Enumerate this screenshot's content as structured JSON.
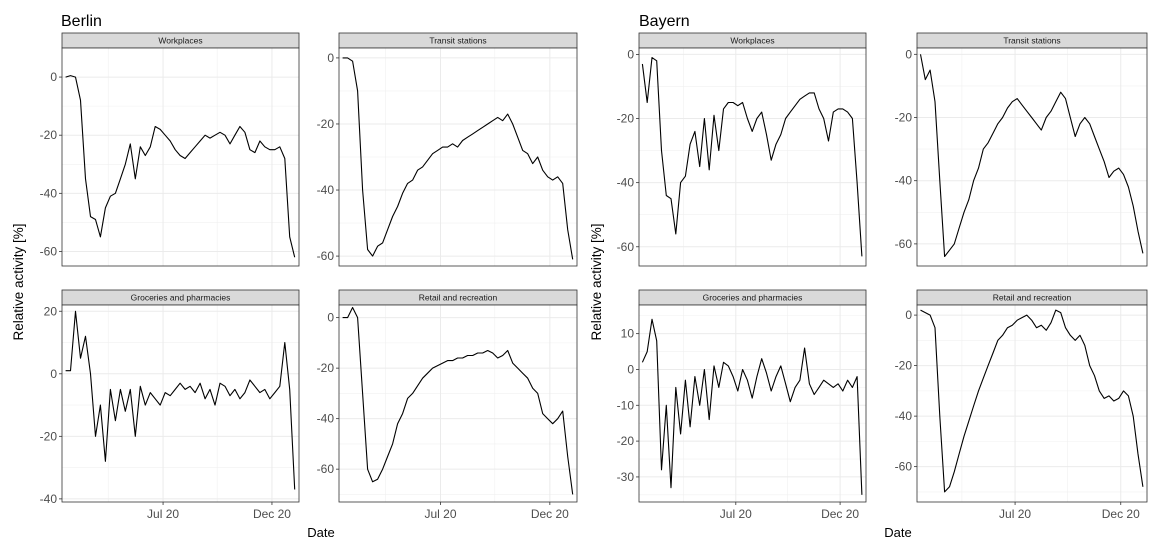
{
  "chart_data": [
    {
      "type": "line",
      "title": "Berlin",
      "xlabel": "Date",
      "ylabel": "Relative activity [%]",
      "x_ticks": [
        "Jul 20",
        "Dec 20"
      ],
      "grid": true,
      "panels": [
        {
          "name": "Workplaces",
          "ylim": [
            -65,
            10
          ],
          "yticks": [
            0,
            -20,
            -40,
            -60
          ],
          "x": [
            "2020-02-15",
            "2020-02-22",
            "2020-02-29",
            "2020-03-07",
            "2020-03-14",
            "2020-03-21",
            "2020-03-28",
            "2020-04-04",
            "2020-04-11",
            "2020-04-18",
            "2020-04-25",
            "2020-05-02",
            "2020-05-09",
            "2020-05-16",
            "2020-05-23",
            "2020-05-30",
            "2020-06-06",
            "2020-06-13",
            "2020-06-20",
            "2020-06-27",
            "2020-07-04",
            "2020-07-11",
            "2020-07-18",
            "2020-07-25",
            "2020-08-01",
            "2020-08-08",
            "2020-08-15",
            "2020-08-22",
            "2020-08-29",
            "2020-09-05",
            "2020-09-12",
            "2020-09-19",
            "2020-09-26",
            "2020-10-03",
            "2020-10-10",
            "2020-10-17",
            "2020-10-24",
            "2020-10-31",
            "2020-11-07",
            "2020-11-14",
            "2020-11-21",
            "2020-11-28",
            "2020-12-05",
            "2020-12-12",
            "2020-12-19",
            "2020-12-26",
            "2021-01-02"
          ],
          "y": [
            0,
            0.5,
            0,
            -8,
            -35,
            -48,
            -49,
            -55,
            -45,
            -41,
            -40,
            -35,
            -30,
            -23,
            -35,
            -24,
            -27,
            -24,
            -17,
            -18,
            -20,
            -22,
            -25,
            -27,
            -28,
            -26,
            -24,
            -22,
            -20,
            -21,
            -20,
            -19,
            -20,
            -23,
            -20,
            -17,
            -19,
            -25,
            -26,
            -22,
            -24,
            -25,
            -25,
            -24,
            -28,
            -55,
            -62
          ]
        },
        {
          "name": "Transit stations",
          "ylim": [
            -63,
            3
          ],
          "yticks": [
            0,
            -20,
            -40,
            -60
          ],
          "x": [
            "2020-02-15",
            "2020-02-22",
            "2020-02-29",
            "2020-03-07",
            "2020-03-14",
            "2020-03-21",
            "2020-03-28",
            "2020-04-04",
            "2020-04-11",
            "2020-04-18",
            "2020-04-25",
            "2020-05-02",
            "2020-05-09",
            "2020-05-16",
            "2020-05-23",
            "2020-05-30",
            "2020-06-06",
            "2020-06-13",
            "2020-06-20",
            "2020-06-27",
            "2020-07-04",
            "2020-07-11",
            "2020-07-18",
            "2020-07-25",
            "2020-08-01",
            "2020-08-08",
            "2020-08-15",
            "2020-08-22",
            "2020-08-29",
            "2020-09-05",
            "2020-09-12",
            "2020-09-19",
            "2020-09-26",
            "2020-10-03",
            "2020-10-10",
            "2020-10-17",
            "2020-10-24",
            "2020-10-31",
            "2020-11-07",
            "2020-11-14",
            "2020-11-21",
            "2020-11-28",
            "2020-12-05",
            "2020-12-12",
            "2020-12-19",
            "2020-12-26",
            "2021-01-02"
          ],
          "y": [
            0,
            0,
            -1,
            -10,
            -40,
            -58,
            -60,
            -57,
            -56,
            -52,
            -48,
            -45,
            -41,
            -38,
            -37,
            -34,
            -33,
            -31,
            -29,
            -28,
            -27,
            -27,
            -26,
            -27,
            -25,
            -24,
            -23,
            -22,
            -21,
            -20,
            -19,
            -18,
            -19,
            -17,
            -20,
            -24,
            -28,
            -29,
            -32,
            -30,
            -34,
            -36,
            -37,
            -36,
            -38,
            -52,
            -61
          ]
        },
        {
          "name": "Groceries and pharmacies",
          "ylim": [
            -41,
            22
          ],
          "yticks": [
            20,
            0,
            -20,
            -40
          ],
          "x": [
            "2020-02-15",
            "2020-02-22",
            "2020-02-29",
            "2020-03-07",
            "2020-03-14",
            "2020-03-21",
            "2020-03-28",
            "2020-04-04",
            "2020-04-11",
            "2020-04-18",
            "2020-04-25",
            "2020-05-02",
            "2020-05-09",
            "2020-05-16",
            "2020-05-23",
            "2020-05-30",
            "2020-06-06",
            "2020-06-13",
            "2020-06-20",
            "2020-06-27",
            "2020-07-04",
            "2020-07-11",
            "2020-07-18",
            "2020-07-25",
            "2020-08-01",
            "2020-08-08",
            "2020-08-15",
            "2020-08-22",
            "2020-08-29",
            "2020-09-05",
            "2020-09-12",
            "2020-09-19",
            "2020-09-26",
            "2020-10-03",
            "2020-10-10",
            "2020-10-17",
            "2020-10-24",
            "2020-10-31",
            "2020-11-07",
            "2020-11-14",
            "2020-11-21",
            "2020-11-28",
            "2020-12-05",
            "2020-12-12",
            "2020-12-19",
            "2020-12-26",
            "2021-01-02"
          ],
          "y": [
            1,
            1,
            20,
            5,
            12,
            0,
            -20,
            -10,
            -28,
            -5,
            -15,
            -5,
            -12,
            -5,
            -20,
            -4,
            -10,
            -6,
            -8,
            -10,
            -6,
            -7,
            -5,
            -3,
            -5,
            -4,
            -6,
            -3,
            -8,
            -5,
            -10,
            -3,
            -4,
            -7,
            -5,
            -8,
            -6,
            -2,
            -4,
            -6,
            -5,
            -8,
            -6,
            -4,
            10,
            -5,
            -37
          ]
        },
        {
          "name": "Retail and recreation",
          "ylim": [
            -73,
            5
          ],
          "yticks": [
            0,
            -20,
            -40,
            -60
          ],
          "x": [
            "2020-02-15",
            "2020-02-22",
            "2020-02-29",
            "2020-03-07",
            "2020-03-14",
            "2020-03-21",
            "2020-03-28",
            "2020-04-04",
            "2020-04-11",
            "2020-04-18",
            "2020-04-25",
            "2020-05-02",
            "2020-05-09",
            "2020-05-16",
            "2020-05-23",
            "2020-05-30",
            "2020-06-06",
            "2020-06-13",
            "2020-06-20",
            "2020-06-27",
            "2020-07-04",
            "2020-07-11",
            "2020-07-18",
            "2020-07-25",
            "2020-08-01",
            "2020-08-08",
            "2020-08-15",
            "2020-08-22",
            "2020-08-29",
            "2020-09-05",
            "2020-09-12",
            "2020-09-19",
            "2020-09-26",
            "2020-10-03",
            "2020-10-10",
            "2020-10-17",
            "2020-10-24",
            "2020-10-31",
            "2020-11-07",
            "2020-11-14",
            "2020-11-21",
            "2020-11-28",
            "2020-12-05",
            "2020-12-12",
            "2020-12-19",
            "2020-12-26",
            "2021-01-02"
          ],
          "y": [
            0,
            0,
            4,
            0,
            -30,
            -60,
            -65,
            -64,
            -60,
            -55,
            -50,
            -42,
            -38,
            -32,
            -30,
            -27,
            -24,
            -22,
            -20,
            -19,
            -18,
            -17,
            -17,
            -16,
            -16,
            -15,
            -15,
            -14,
            -14,
            -13,
            -14,
            -16,
            -15,
            -13,
            -18,
            -20,
            -22,
            -24,
            -28,
            -30,
            -38,
            -40,
            -42,
            -40,
            -37,
            -55,
            -70
          ]
        }
      ]
    },
    {
      "type": "line",
      "title": "Bayern",
      "xlabel": "Date",
      "ylabel": "Relative activity [%]",
      "x_ticks": [
        "Jul 20",
        "Dec 20"
      ],
      "grid": true,
      "panels": [
        {
          "name": "Workplaces",
          "ylim": [
            -66,
            2
          ],
          "yticks": [
            0,
            -20,
            -40,
            -60
          ],
          "x": [
            "2020-02-15",
            "2020-02-22",
            "2020-02-29",
            "2020-03-07",
            "2020-03-14",
            "2020-03-21",
            "2020-03-28",
            "2020-04-04",
            "2020-04-11",
            "2020-04-18",
            "2020-04-25",
            "2020-05-02",
            "2020-05-09",
            "2020-05-16",
            "2020-05-23",
            "2020-05-30",
            "2020-06-06",
            "2020-06-13",
            "2020-06-20",
            "2020-06-27",
            "2020-07-04",
            "2020-07-11",
            "2020-07-18",
            "2020-07-25",
            "2020-08-01",
            "2020-08-08",
            "2020-08-15",
            "2020-08-22",
            "2020-08-29",
            "2020-09-05",
            "2020-09-12",
            "2020-09-19",
            "2020-09-26",
            "2020-10-03",
            "2020-10-10",
            "2020-10-17",
            "2020-10-24",
            "2020-10-31",
            "2020-11-07",
            "2020-11-14",
            "2020-11-21",
            "2020-11-28",
            "2020-12-05",
            "2020-12-12",
            "2020-12-19",
            "2020-12-26",
            "2021-01-02"
          ],
          "y": [
            -3,
            -15,
            -1,
            -2,
            -30,
            -44,
            -45,
            -56,
            -40,
            -38,
            -28,
            -24,
            -35,
            -20,
            -36,
            -19,
            -30,
            -17,
            -15,
            -15,
            -16,
            -15,
            -20,
            -24,
            -20,
            -18,
            -25,
            -33,
            -28,
            -25,
            -20,
            -18,
            -16,
            -14,
            -13,
            -12,
            -12,
            -17,
            -20,
            -27,
            -18,
            -17,
            -17,
            -18,
            -20,
            -40,
            -63
          ]
        },
        {
          "name": "Transit stations",
          "ylim": [
            -67,
            2
          ],
          "yticks": [
            0,
            -20,
            -40,
            -60
          ],
          "x": [
            "2020-02-15",
            "2020-02-22",
            "2020-02-29",
            "2020-03-07",
            "2020-03-14",
            "2020-03-21",
            "2020-03-28",
            "2020-04-04",
            "2020-04-11",
            "2020-04-18",
            "2020-04-25",
            "2020-05-02",
            "2020-05-09",
            "2020-05-16",
            "2020-05-23",
            "2020-05-30",
            "2020-06-06",
            "2020-06-13",
            "2020-06-20",
            "2020-06-27",
            "2020-07-04",
            "2020-07-11",
            "2020-07-18",
            "2020-07-25",
            "2020-08-01",
            "2020-08-08",
            "2020-08-15",
            "2020-08-22",
            "2020-08-29",
            "2020-09-05",
            "2020-09-12",
            "2020-09-19",
            "2020-09-26",
            "2020-10-03",
            "2020-10-10",
            "2020-10-17",
            "2020-10-24",
            "2020-10-31",
            "2020-11-07",
            "2020-11-14",
            "2020-11-21",
            "2020-11-28",
            "2020-12-05",
            "2020-12-12",
            "2020-12-19",
            "2020-12-26",
            "2021-01-02"
          ],
          "y": [
            0,
            -8,
            -5,
            -15,
            -40,
            -64,
            -62,
            -60,
            -55,
            -50,
            -46,
            -40,
            -36,
            -30,
            -28,
            -25,
            -22,
            -20,
            -17,
            -15,
            -14,
            -16,
            -18,
            -20,
            -22,
            -24,
            -20,
            -18,
            -15,
            -12,
            -14,
            -20,
            -26,
            -22,
            -20,
            -22,
            -26,
            -30,
            -34,
            -39,
            -37,
            -36,
            -38,
            -42,
            -48,
            -56,
            -63
          ]
        },
        {
          "name": "Groceries and pharmacies",
          "ylim": [
            -37,
            18
          ],
          "yticks": [
            10,
            0,
            -10,
            -20,
            -30
          ],
          "x": [
            "2020-02-15",
            "2020-02-22",
            "2020-02-29",
            "2020-03-07",
            "2020-03-14",
            "2020-03-21",
            "2020-03-28",
            "2020-04-04",
            "2020-04-11",
            "2020-04-18",
            "2020-04-25",
            "2020-05-02",
            "2020-05-09",
            "2020-05-16",
            "2020-05-23",
            "2020-05-30",
            "2020-06-06",
            "2020-06-13",
            "2020-06-20",
            "2020-06-27",
            "2020-07-04",
            "2020-07-11",
            "2020-07-18",
            "2020-07-25",
            "2020-08-01",
            "2020-08-08",
            "2020-08-15",
            "2020-08-22",
            "2020-08-29",
            "2020-09-05",
            "2020-09-12",
            "2020-09-19",
            "2020-09-26",
            "2020-10-03",
            "2020-10-10",
            "2020-10-17",
            "2020-10-24",
            "2020-10-31",
            "2020-11-07",
            "2020-11-14",
            "2020-11-21",
            "2020-11-28",
            "2020-12-05",
            "2020-12-12",
            "2020-12-19",
            "2020-12-26",
            "2021-01-02"
          ],
          "y": [
            2,
            5,
            14,
            8,
            -28,
            -10,
            -33,
            -5,
            -18,
            -3,
            -16,
            -2,
            -10,
            0,
            -14,
            1,
            -5,
            2,
            1,
            -2,
            -6,
            0,
            -3,
            -8,
            -2,
            3,
            -1,
            -6,
            -2,
            1,
            -4,
            -9,
            -5,
            -3,
            6,
            -4,
            -7,
            -5,
            -3,
            -4,
            -5,
            -4,
            -6,
            -3,
            -5,
            -2,
            -35
          ]
        },
        {
          "name": "Retail and recreation",
          "ylim": [
            -74,
            4
          ],
          "yticks": [
            0,
            -20,
            -40,
            -60
          ],
          "x": [
            "2020-02-15",
            "2020-02-22",
            "2020-02-29",
            "2020-03-07",
            "2020-03-14",
            "2020-03-21",
            "2020-03-28",
            "2020-04-04",
            "2020-04-11",
            "2020-04-18",
            "2020-04-25",
            "2020-05-02",
            "2020-05-09",
            "2020-05-16",
            "2020-05-23",
            "2020-05-30",
            "2020-06-06",
            "2020-06-13",
            "2020-06-20",
            "2020-06-27",
            "2020-07-04",
            "2020-07-11",
            "2020-07-18",
            "2020-07-25",
            "2020-08-01",
            "2020-08-08",
            "2020-08-15",
            "2020-08-22",
            "2020-08-29",
            "2020-09-05",
            "2020-09-12",
            "2020-09-19",
            "2020-09-26",
            "2020-10-03",
            "2020-10-10",
            "2020-10-17",
            "2020-10-24",
            "2020-10-31",
            "2020-11-07",
            "2020-11-14",
            "2020-11-21",
            "2020-11-28",
            "2020-12-05",
            "2020-12-12",
            "2020-12-19",
            "2020-12-26",
            "2021-01-02"
          ],
          "y": [
            2,
            1,
            0,
            -5,
            -40,
            -70,
            -68,
            -62,
            -55,
            -48,
            -42,
            -36,
            -30,
            -25,
            -20,
            -15,
            -10,
            -8,
            -5,
            -4,
            -2,
            -1,
            0,
            -2,
            -5,
            -4,
            -6,
            -3,
            2,
            1,
            -5,
            -8,
            -10,
            -8,
            -12,
            -20,
            -24,
            -30,
            -33,
            -32,
            -34,
            -33,
            -30,
            -32,
            -40,
            -55,
            -68
          ]
        }
      ]
    }
  ]
}
